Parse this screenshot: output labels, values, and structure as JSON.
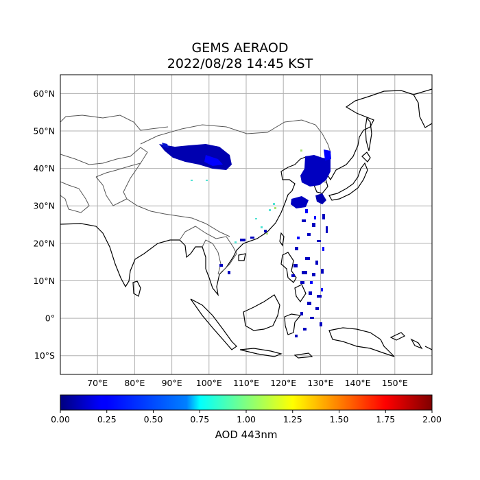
{
  "title": {
    "line1": "GEMS AERAOD",
    "line2": "2022/08/28 14:45 KST"
  },
  "map": {
    "lon_range": [
      60,
      160
    ],
    "lat_range": [
      -15,
      65
    ],
    "lon_ticks": [
      {
        "value": 70,
        "label": "70°E"
      },
      {
        "value": 80,
        "label": "80°E"
      },
      {
        "value": 90,
        "label": "90°E"
      },
      {
        "value": 100,
        "label": "100°E"
      },
      {
        "value": 110,
        "label": "110°E"
      },
      {
        "value": 120,
        "label": "120°E"
      },
      {
        "value": 130,
        "label": "130°E"
      },
      {
        "value": 140,
        "label": "140°E"
      },
      {
        "value": 150,
        "label": "150°E"
      }
    ],
    "lat_ticks": [
      {
        "value": 60,
        "label": "60°N"
      },
      {
        "value": 50,
        "label": "50°N"
      },
      {
        "value": 40,
        "label": "40°N"
      },
      {
        "value": 30,
        "label": "30°N"
      },
      {
        "value": 20,
        "label": "20°N"
      },
      {
        "value": 10,
        "label": "10°N"
      },
      {
        "value": 0,
        "label": "0°"
      },
      {
        "value": -10,
        "label": "10°S"
      }
    ],
    "gridlines": true,
    "coastline_color": "#000000",
    "border_color": "#555555",
    "grid_color": "#b0b0b0"
  },
  "colorbar": {
    "label": "AOD 443nm",
    "vmin": 0.0,
    "vmax": 2.0,
    "colormap": "jet",
    "ticks": [
      "0.00",
      "0.25",
      "0.50",
      "0.75",
      "1.00",
      "1.25",
      "1.50",
      "1.75",
      "2.00"
    ]
  }
}
